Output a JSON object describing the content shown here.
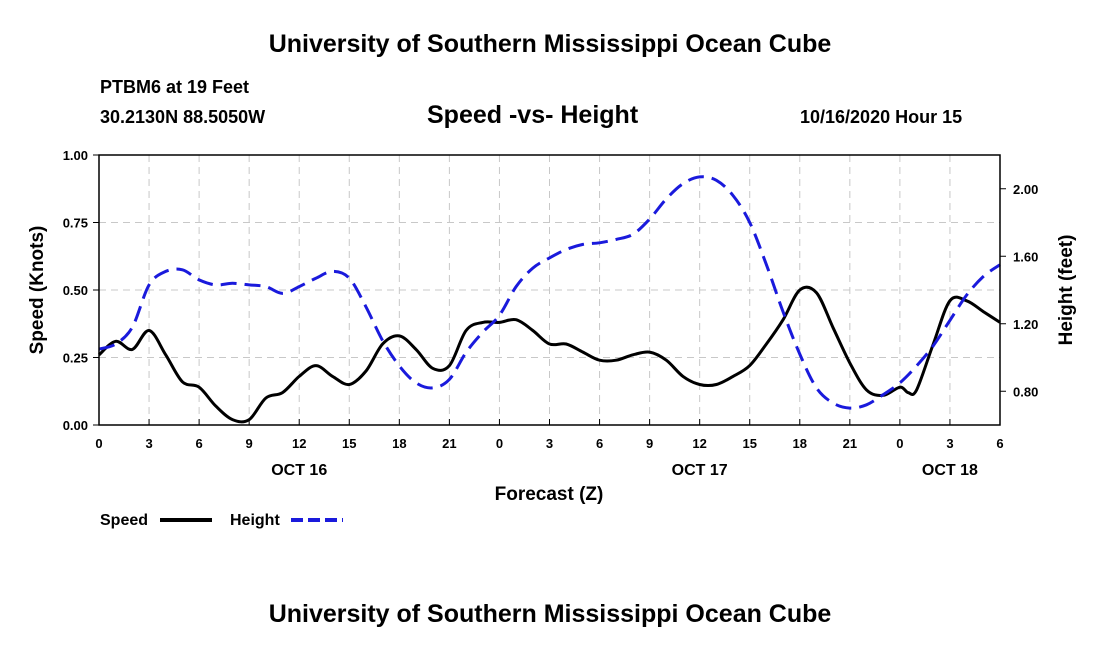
{
  "header": {
    "title": "University of Southern Mississippi Ocean Cube",
    "station": "PTBM6 at 19 Feet",
    "coordinates": "30.2130N 88.5050W",
    "datetime": "10/16/2020 Hour 15"
  },
  "footer": {
    "title": "University of Southern Mississippi Ocean Cube"
  },
  "colors": {
    "speed_line": "#000000",
    "height_line": "#1a1adc",
    "grid": "#c8c8c8"
  },
  "chart_data": {
    "type": "line",
    "title": "Speed -vs- Height",
    "xlabel": "Forecast (Z)",
    "ylabel": "Speed (Knots)",
    "y2label": "Height (feet)",
    "grid": true,
    "legend_position": "bottom-left",
    "x_unit": "hours since 10/16/2020 00Z",
    "xlim": [
      0,
      54
    ],
    "ylim": [
      0,
      1
    ],
    "y2lim": [
      0.6,
      2.2
    ],
    "x_ticks": [
      0,
      3,
      6,
      9,
      12,
      15,
      18,
      21,
      24,
      27,
      30,
      33,
      36,
      39,
      42,
      45,
      48,
      51,
      54
    ],
    "x_tick_labels": [
      "0",
      "3",
      "6",
      "9",
      "12",
      "15",
      "18",
      "21",
      "0",
      "3",
      "6",
      "9",
      "12",
      "15",
      "18",
      "21",
      "0",
      "3",
      "6"
    ],
    "date_labels": [
      {
        "x": 12,
        "label": "OCT 16"
      },
      {
        "x": 36,
        "label": "OCT 17"
      },
      {
        "x": 51,
        "label": "OCT 18"
      }
    ],
    "y_ticks": [
      0,
      0.25,
      0.5,
      0.75,
      1.0
    ],
    "y_tick_labels": [
      "0.00",
      "0.25",
      "0.50",
      "0.75",
      "1.00"
    ],
    "y2_ticks": [
      0.8,
      1.2,
      1.6,
      2.0
    ],
    "y2_tick_labels": [
      "0.80",
      "1.20",
      "1.60",
      "2.00"
    ],
    "series": [
      {
        "name": "Speed",
        "axis": "left",
        "style": "solid",
        "x": [
          0,
          1,
          2,
          3,
          4,
          5,
          6,
          7,
          8,
          9,
          10,
          11,
          12,
          13,
          14,
          15,
          16,
          17,
          18,
          19,
          20,
          21,
          22,
          23,
          24,
          25,
          26,
          27,
          28,
          29,
          30,
          31,
          32,
          33,
          34,
          35,
          36,
          37,
          38,
          39,
          40,
          41,
          42,
          43,
          44,
          45,
          46,
          47,
          48,
          48.5,
          49,
          50,
          51,
          52,
          53,
          54
        ],
        "values": [
          0.26,
          0.31,
          0.28,
          0.35,
          0.26,
          0.16,
          0.14,
          0.07,
          0.02,
          0.02,
          0.1,
          0.12,
          0.18,
          0.22,
          0.18,
          0.15,
          0.2,
          0.3,
          0.33,
          0.28,
          0.21,
          0.22,
          0.35,
          0.38,
          0.38,
          0.39,
          0.35,
          0.3,
          0.3,
          0.27,
          0.24,
          0.24,
          0.26,
          0.27,
          0.24,
          0.18,
          0.15,
          0.15,
          0.18,
          0.22,
          0.3,
          0.39,
          0.5,
          0.49,
          0.36,
          0.23,
          0.13,
          0.11,
          0.14,
          0.12,
          0.13,
          0.3,
          0.46,
          0.46,
          0.42,
          0.38
        ]
      },
      {
        "name": "Height",
        "axis": "right",
        "style": "dashed",
        "x": [
          0,
          1,
          2,
          3,
          4,
          5,
          6,
          7,
          8,
          9,
          10,
          11,
          12,
          13,
          14,
          15,
          16,
          17,
          18,
          19,
          20,
          21,
          22,
          23,
          24,
          25,
          26,
          27,
          28,
          29,
          30,
          31,
          32,
          33,
          34,
          35,
          36,
          37,
          38,
          39,
          40,
          41,
          42,
          43,
          44,
          45,
          46,
          47,
          48,
          49,
          50,
          51,
          52,
          53,
          54
        ],
        "values": [
          1.05,
          1.08,
          1.18,
          1.43,
          1.51,
          1.52,
          1.46,
          1.43,
          1.44,
          1.43,
          1.42,
          1.38,
          1.42,
          1.47,
          1.51,
          1.47,
          1.3,
          1.1,
          0.95,
          0.85,
          0.82,
          0.87,
          1.03,
          1.15,
          1.25,
          1.42,
          1.53,
          1.59,
          1.64,
          1.67,
          1.68,
          1.7,
          1.73,
          1.82,
          1.94,
          2.03,
          2.07,
          2.05,
          1.96,
          1.8,
          1.55,
          1.27,
          1.02,
          0.82,
          0.73,
          0.7,
          0.72,
          0.78,
          0.85,
          0.95,
          1.07,
          1.22,
          1.37,
          1.48,
          1.55
        ]
      }
    ]
  }
}
